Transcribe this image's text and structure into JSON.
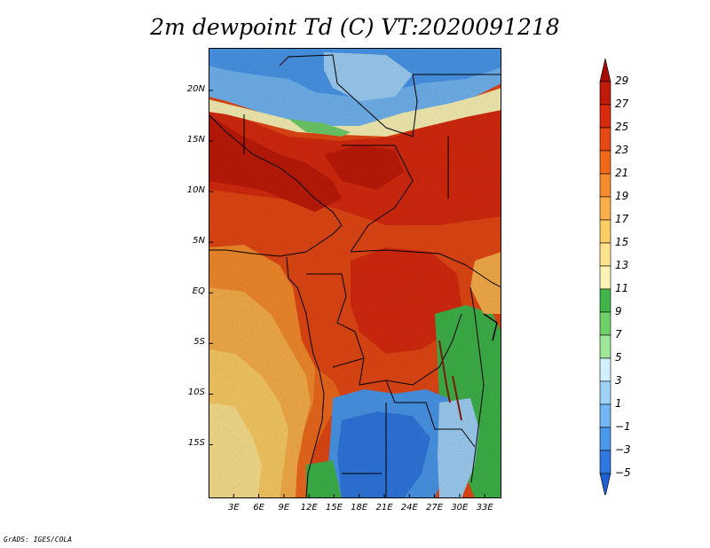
{
  "title": "2m dewpoint Td (C) VT:2020091218",
  "credit": "GrADS: IGES/COLA",
  "map": {
    "variable": "2m dewpoint",
    "units": "C",
    "valid_time": "2020091218",
    "lat_range": [
      -20,
      25
    ],
    "lon_range": [
      0,
      35
    ],
    "lat_labels": [
      {
        "lat": 20,
        "text": "20N"
      },
      {
        "lat": 15,
        "text": "15N"
      },
      {
        "lat": 10,
        "text": "10N"
      },
      {
        "lat": 5,
        "text": "5N"
      },
      {
        "lat": 0,
        "text": "EQ"
      },
      {
        "lat": -5,
        "text": "5S"
      },
      {
        "lat": -10,
        "text": "10S"
      },
      {
        "lat": -15,
        "text": "15S"
      }
    ],
    "lon_labels": [
      {
        "lon": 3,
        "text": "3E"
      },
      {
        "lon": 6,
        "text": "6E"
      },
      {
        "lon": 9,
        "text": "9E"
      },
      {
        "lon": 12,
        "text": "12E"
      },
      {
        "lon": 15,
        "text": "15E"
      },
      {
        "lon": 18,
        "text": "18E"
      },
      {
        "lon": 21,
        "text": "21E"
      },
      {
        "lon": 24,
        "text": "24E"
      },
      {
        "lon": 27,
        "text": "27E"
      },
      {
        "lon": 30,
        "text": "30E"
      },
      {
        "lon": 33,
        "text": "33E"
      }
    ]
  },
  "colorbar": {
    "levels": [
      {
        "value": 29,
        "text": "29"
      },
      {
        "value": 27,
        "text": "27"
      },
      {
        "value": 25,
        "text": "25"
      },
      {
        "value": 23,
        "text": "23"
      },
      {
        "value": 21,
        "text": "21"
      },
      {
        "value": 19,
        "text": "19"
      },
      {
        "value": 17,
        "text": "17"
      },
      {
        "value": 15,
        "text": "15"
      },
      {
        "value": 13,
        "text": "13"
      },
      {
        "value": 11,
        "text": "11"
      },
      {
        "value": 9,
        "text": "9"
      },
      {
        "value": 7,
        "text": "7"
      },
      {
        "value": 5,
        "text": "5"
      },
      {
        "value": 3,
        "text": "3"
      },
      {
        "value": 1,
        "text": "1"
      },
      {
        "value": -1,
        "text": "−1"
      },
      {
        "value": -3,
        "text": "−3"
      },
      {
        "value": -5,
        "text": "−5"
      }
    ],
    "colors": [
      "#1f5fd0",
      "#2e78e0",
      "#4a98ec",
      "#72b6f3",
      "#a0d2f8",
      "#d2f0fb",
      "#a0e69b",
      "#6fd06a",
      "#3fb54a",
      "#fbf3b5",
      "#fde38e",
      "#fccd64",
      "#fab04a",
      "#f68c2c",
      "#f06a1c",
      "#e64814",
      "#d82a0e",
      "#c01a08",
      "#a50a04"
    ]
  }
}
